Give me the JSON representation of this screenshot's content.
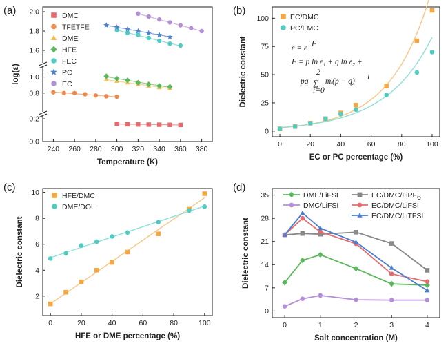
{
  "chart_data": [
    {
      "panel": "(a)",
      "type": "scatter",
      "xlabel": "Temperature (K)",
      "ylabel": "log(ε)",
      "xlim": [
        230,
        390
      ],
      "y_segments": [
        [
          0,
          0.2
        ],
        [
          0.6,
          1.1
        ],
        [
          1.5,
          2.05
        ]
      ],
      "x_ticks": [
        "240",
        "260",
        "280",
        "300",
        "320",
        "340",
        "360",
        "380"
      ],
      "y_ticks": [
        "0.0",
        "0.2",
        "0.8",
        "1.0",
        "1.6",
        "1.8",
        "2.0"
      ],
      "legend_position": "top-left",
      "series": [
        {
          "name": "DMC",
          "color": "#e56b6f",
          "marker": "square",
          "x": [
            300,
            310,
            320,
            330,
            340,
            350,
            360
          ],
          "y": [
            0.155,
            0.152,
            0.15,
            0.149,
            0.148,
            0.147,
            0.146
          ]
        },
        {
          "name": "TFETFE",
          "color": "#f08a4b",
          "marker": "circle",
          "x": [
            240,
            250,
            260,
            270,
            280,
            290,
            300
          ],
          "y": [
            0.81,
            0.8,
            0.8,
            0.785,
            0.77,
            0.76,
            0.755
          ]
        },
        {
          "name": "DME",
          "color": "#f2c14e",
          "marker": "triangle",
          "x": [
            290,
            300,
            310,
            320,
            330,
            340,
            350
          ],
          "y": [
            0.97,
            0.95,
            0.93,
            0.91,
            0.89,
            0.87,
            0.86
          ]
        },
        {
          "name": "HFE",
          "color": "#5cb85c",
          "marker": "diamond",
          "x": [
            290,
            300,
            310,
            320,
            330,
            340,
            350
          ],
          "y": [
            1.01,
            0.98,
            0.96,
            0.93,
            0.91,
            0.89,
            0.88
          ]
        },
        {
          "name": "FEC",
          "color": "#4ecdc4",
          "marker": "circle",
          "x": [
            300,
            310,
            320,
            330,
            340,
            350,
            360
          ],
          "y": [
            1.81,
            1.78,
            1.76,
            1.73,
            1.7,
            1.67,
            1.65
          ]
        },
        {
          "name": "PC",
          "color": "#4a7fd4",
          "marker": "star",
          "x": [
            290,
            300,
            310,
            320,
            330,
            340,
            350
          ],
          "y": [
            1.86,
            1.84,
            1.82,
            1.8,
            1.78,
            1.76,
            1.74
          ]
        },
        {
          "name": "EC",
          "color": "#b48ed6",
          "marker": "circle",
          "x": [
            320,
            330,
            340,
            350,
            360,
            370,
            380
          ],
          "y": [
            1.98,
            1.95,
            1.92,
            1.89,
            1.86,
            1.83,
            1.8
          ]
        }
      ]
    },
    {
      "panel": "(b)",
      "type": "scatter",
      "xlabel": "EC or PC percentage (%)",
      "ylabel": "Dielectric constant",
      "xlim": [
        -5,
        105
      ],
      "ylim": [
        -5,
        110
      ],
      "x_ticks": [
        "0",
        "20",
        "40",
        "60",
        "80",
        "100"
      ],
      "y_ticks": [
        "0",
        "25",
        "50",
        "75",
        "100"
      ],
      "legend_position": "top-left",
      "equations": {
        "line1": "ε = e",
        "line1_sup": "F",
        "line2": "F = p ln ε₁ + q ln ε₂ +",
        "line3_prefix": "pq",
        "sum_top": "2",
        "sum_bottom": "i=0",
        "line3_suffix": "mᵢ(p − q)",
        "line3_sup": "i"
      },
      "series": [
        {
          "name": "EC/DMC",
          "color": "#f5a742",
          "marker": "square",
          "x": [
            0,
            10,
            20,
            30,
            40,
            50,
            70,
            90,
            100
          ],
          "y": [
            2,
            4,
            7,
            11,
            16,
            23,
            40,
            80,
            107
          ]
        },
        {
          "name": "PC/EMC",
          "color": "#4ecdc4",
          "marker": "circle",
          "x": [
            0,
            10,
            20,
            30,
            40,
            50,
            70,
            90,
            100
          ],
          "y": [
            2,
            4,
            7,
            11,
            15,
            19,
            32,
            52,
            70
          ]
        }
      ]
    },
    {
      "panel": "(c)",
      "type": "scatter",
      "xlabel": "HFE or DME percentage (%)",
      "ylabel": "Dielectric constant",
      "xlim": [
        -5,
        105
      ],
      "ylim": [
        0.5,
        10.3
      ],
      "x_ticks": [
        "0",
        "20",
        "40",
        "60",
        "80",
        "100"
      ],
      "y_ticks": [
        "2",
        "4",
        "6",
        "8",
        "10"
      ],
      "legend_position": "top-left",
      "series": [
        {
          "name": "HFE/DMC",
          "color": "#f5a742",
          "marker": "square",
          "x": [
            0,
            10,
            20,
            30,
            40,
            50,
            70,
            90,
            100
          ],
          "y": [
            1.4,
            2.3,
            3.1,
            4.0,
            4.6,
            5.4,
            6.8,
            8.7,
            9.9
          ]
        },
        {
          "name": "DME/DOL",
          "color": "#4ecdc4",
          "marker": "circle",
          "x": [
            0,
            10,
            20,
            30,
            40,
            50,
            70,
            90,
            100
          ],
          "y": [
            4.9,
            5.3,
            5.9,
            6.2,
            6.6,
            6.9,
            7.7,
            8.6,
            8.9
          ]
        }
      ]
    },
    {
      "panel": "(d)",
      "type": "line",
      "xlabel": "Salt concentration (M)",
      "ylabel": "Dielectric constant",
      "xlim": [
        -0.35,
        4.35
      ],
      "ylim": [
        -2,
        37
      ],
      "x_ticks": [
        "0",
        "1",
        "2",
        "3",
        "4"
      ],
      "y_ticks": [
        "0",
        "7",
        "14",
        "21",
        "28",
        "35"
      ],
      "legend_position": "top",
      "series": [
        {
          "name": "DME/LiFSI",
          "color": "#5cb85c",
          "marker": "diamond",
          "x": [
            0,
            0.5,
            1,
            2,
            3,
            4
          ],
          "y": [
            8.6,
            15.3,
            17.0,
            12.8,
            8.2,
            7.8
          ]
        },
        {
          "name": "DMC/LiFSI",
          "color": "#b48ed6",
          "marker": "circle",
          "x": [
            0,
            0.5,
            1,
            2,
            3,
            4
          ],
          "y": [
            1.4,
            3.7,
            4.7,
            3.4,
            3.3,
            3.3
          ]
        },
        {
          "name": "EC/DMC/LiPF",
          "name_sub": "6",
          "color": "#888888",
          "marker": "square",
          "x": [
            0,
            0.5,
            1,
            2,
            3,
            4
          ],
          "y": [
            23.0,
            23.4,
            23.2,
            23.8,
            20.4,
            12.3
          ]
        },
        {
          "name": "EC/DMC/LiFSI",
          "color": "#e56b6f",
          "marker": "circle",
          "x": [
            0,
            0.5,
            1,
            2,
            3,
            4
          ],
          "y": [
            23.0,
            28.0,
            23.9,
            20.3,
            11.2,
            8.9
          ]
        },
        {
          "name": "EC/DMC/LiTFSI",
          "color": "#4a7fd4",
          "marker": "triangle",
          "x": [
            0,
            0.5,
            1,
            2,
            3,
            4
          ],
          "y": [
            23.0,
            29.6,
            25.0,
            20.8,
            13.0,
            6.2
          ]
        }
      ]
    }
  ]
}
